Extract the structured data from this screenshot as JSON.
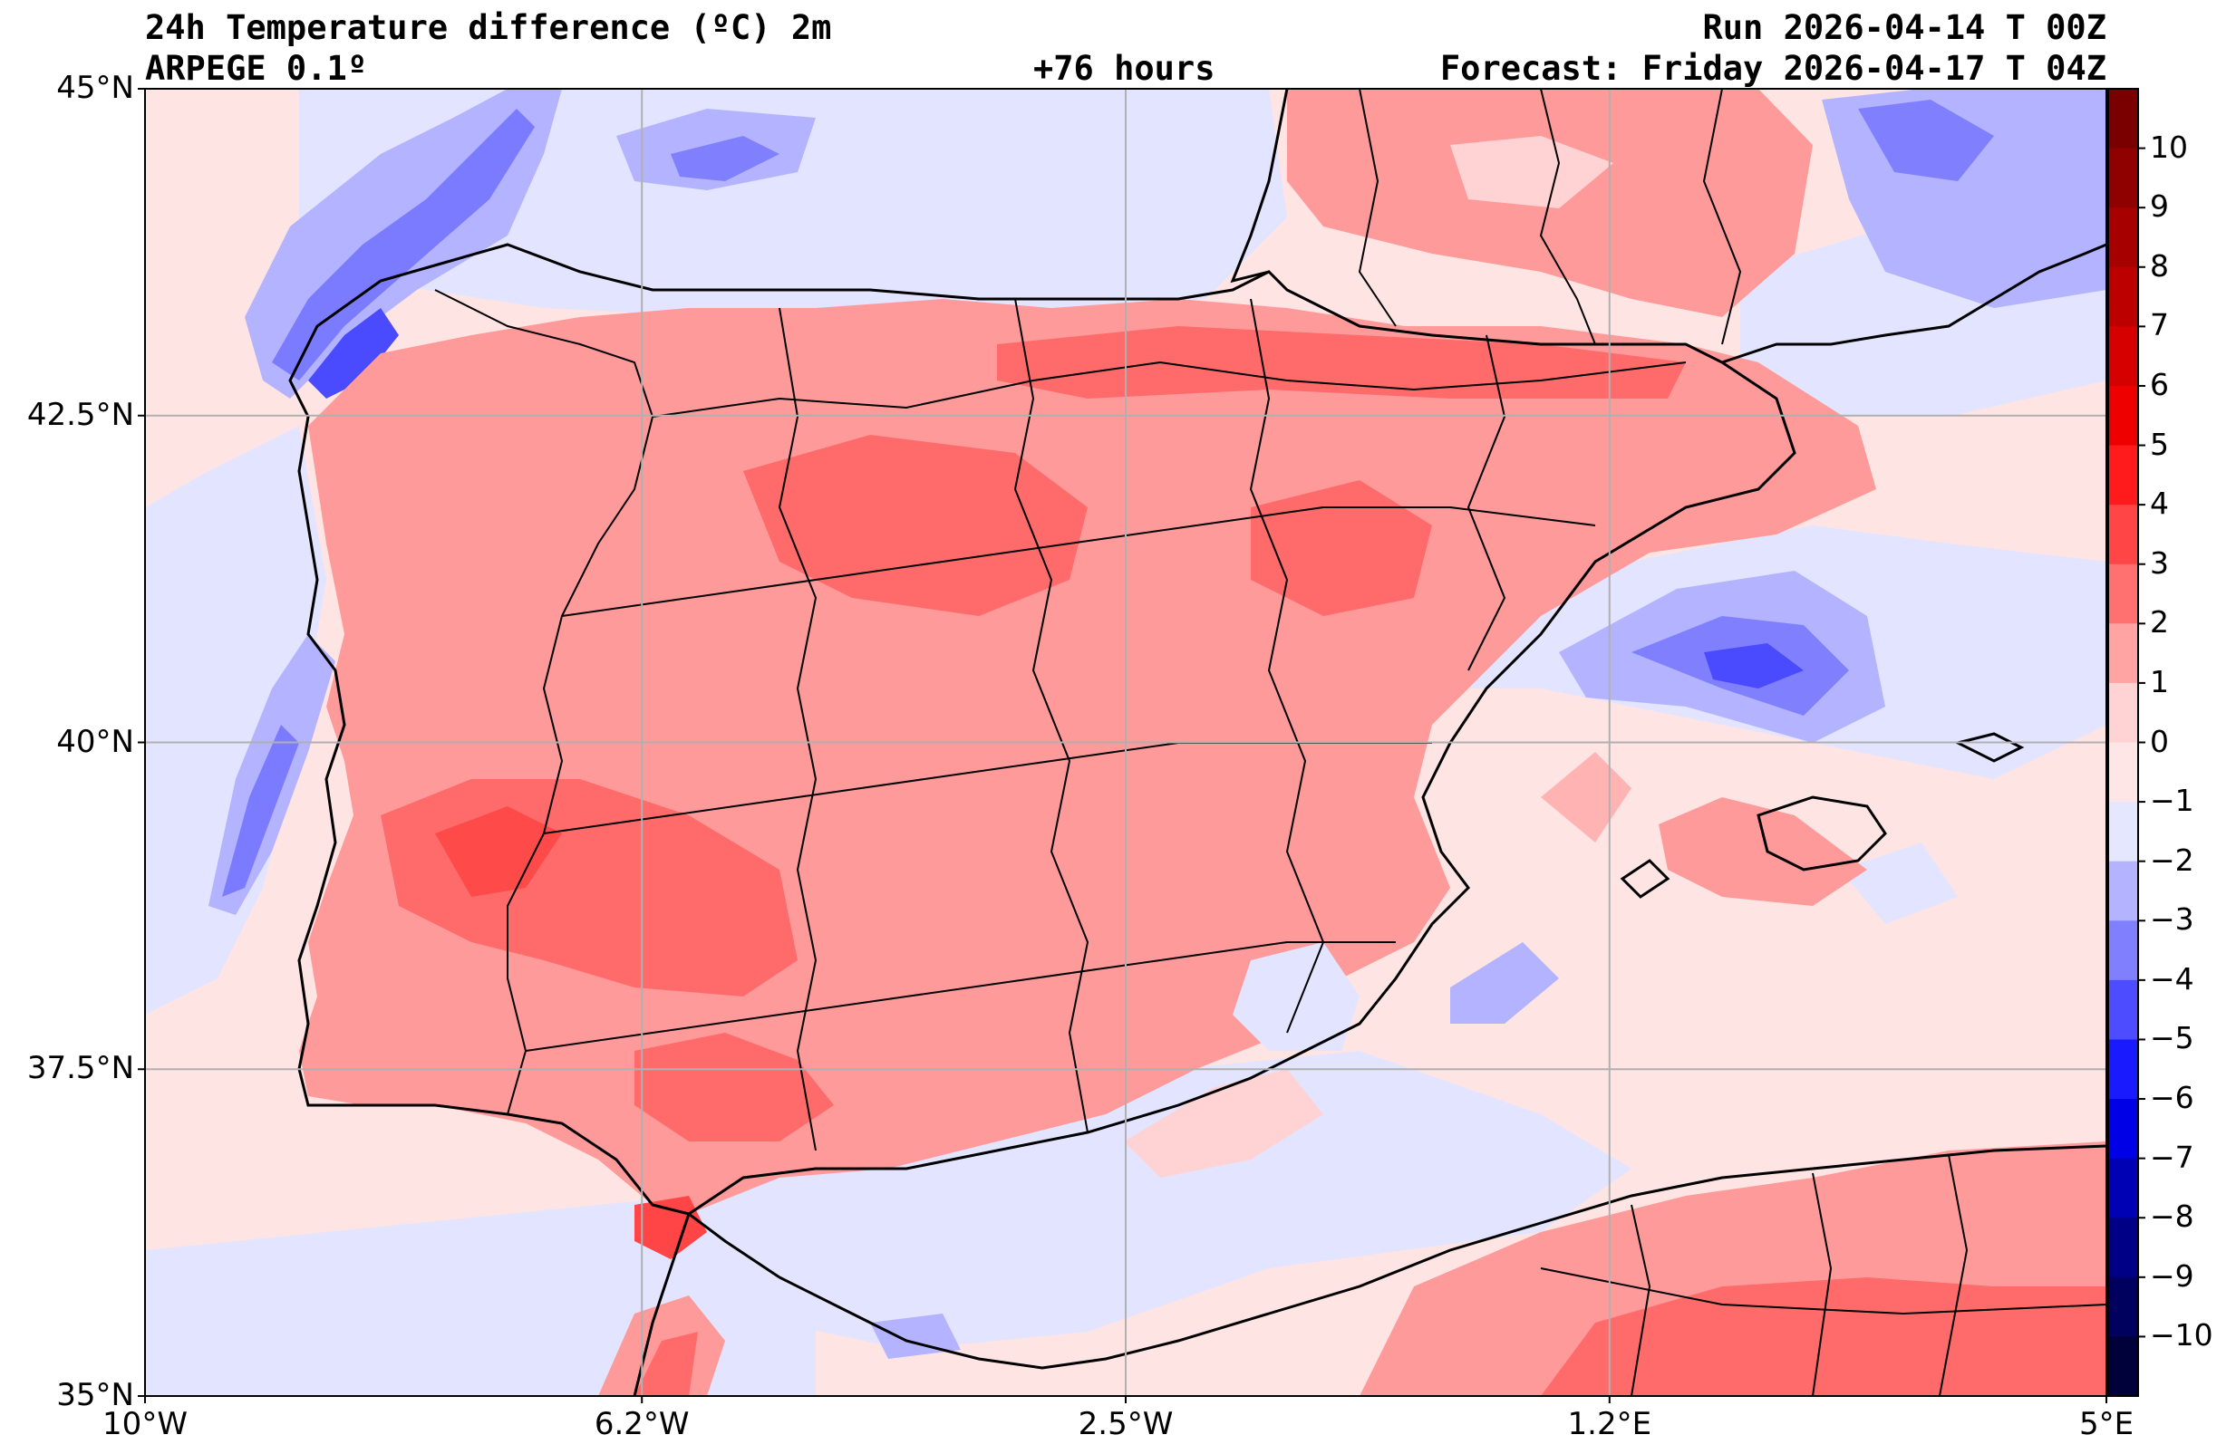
{
  "header": {
    "title": "24h Temperature difference (ºC) 2m",
    "model": "ARPEGE 0.1º",
    "lead_time": "+76 hours",
    "run": "Run 2026-04-14 T 00Z",
    "forecast": "Forecast: Friday 2026-04-17 T 04Z"
  },
  "map": {
    "extent": {
      "lon_min": -10,
      "lon_max": 5,
      "lat_min": 35,
      "lat_max": 45
    },
    "lat_ticks": [
      {
        "value": 45,
        "label": "45°N"
      },
      {
        "value": 42.5,
        "label": "42.5°N"
      },
      {
        "value": 40,
        "label": "40°N"
      },
      {
        "value": 37.5,
        "label": "37.5°N"
      },
      {
        "value": 35,
        "label": "35°N"
      }
    ],
    "lon_ticks": [
      {
        "value": -10,
        "label": "10°W"
      },
      {
        "value": -6.2,
        "label": "6.2°W"
      },
      {
        "value": -2.5,
        "label": "2.5°W"
      },
      {
        "value": 1.2,
        "label": "1.2°E"
      },
      {
        "value": 5,
        "label": "5°E"
      }
    ],
    "gridlines": true
  },
  "colorbar": {
    "labels": [
      "10",
      "9",
      "8",
      "7",
      "6",
      "5",
      "4",
      "3",
      "2",
      "1",
      "0",
      "−1",
      "−2",
      "−3",
      "−4",
      "−5",
      "−6",
      "−7",
      "−8",
      "−9",
      "−10"
    ],
    "colors": [
      "#7a0000",
      "#8f0000",
      "#a60000",
      "#bc0000",
      "#d50000",
      "#ef0000",
      "#ff1b1b",
      "#ff4545",
      "#ff7070",
      "#ffa3a3",
      "#ffd3d3",
      "#ffe6e6",
      "#e5e6ff",
      "#b3b3ff",
      "#8080ff",
      "#4d4dff",
      "#1a1aff",
      "#0000e6",
      "#0000b4",
      "#000087",
      "#00005e",
      "#00003a"
    ]
  },
  "colors": {
    "sea_neutral": "#ffe4e4",
    "land_warm": "#ff9a9a",
    "land_hot": "#ff5f5f",
    "cold_sea": "#7b7bff",
    "very_cold": "#4a4aff",
    "slight_cold": "#e3e4ff",
    "border": "#000000"
  }
}
